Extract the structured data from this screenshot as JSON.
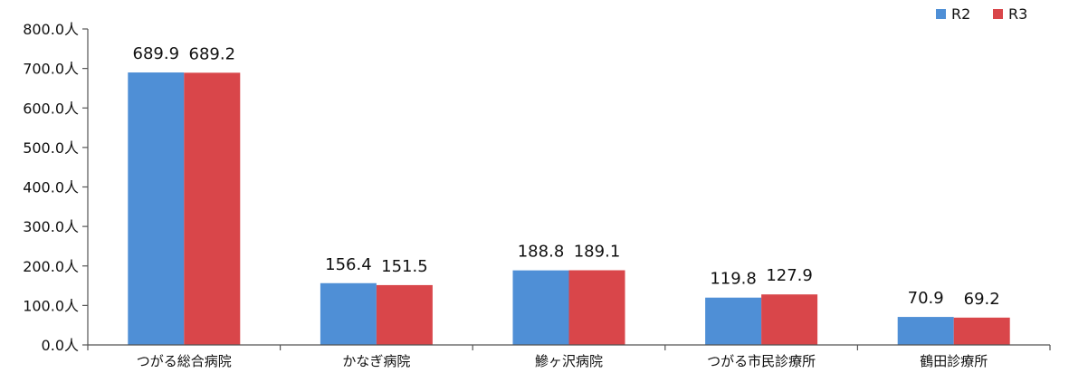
{
  "chart_data": {
    "type": "bar",
    "categories": [
      "つがる総合病院",
      "かなぎ病院",
      "鰺ヶ沢病院",
      "つがる市民診療所",
      "鶴田診療所"
    ],
    "series": [
      {
        "name": "R2",
        "values": [
          689.9,
          156.4,
          188.8,
          119.8,
          70.9
        ],
        "color": "#4f8fd6"
      },
      {
        "name": "R3",
        "values": [
          689.2,
          151.5,
          189.1,
          127.9,
          69.2
        ],
        "color": "#d9464a"
      }
    ],
    "data_labels": [
      [
        "689.9",
        "156.4",
        "188.8",
        "119.8",
        "70.9"
      ],
      [
        "689.2",
        "151.5",
        "189.1",
        "127.9",
        "69.2"
      ]
    ],
    "y_ticks": [
      "0.0人",
      "100.0人",
      "200.0人",
      "300.0人",
      "400.0人",
      "500.0人",
      "600.0人",
      "700.0人",
      "800.0人"
    ],
    "ylim": [
      0,
      800
    ],
    "grid": false,
    "legend_position": "top-right"
  }
}
